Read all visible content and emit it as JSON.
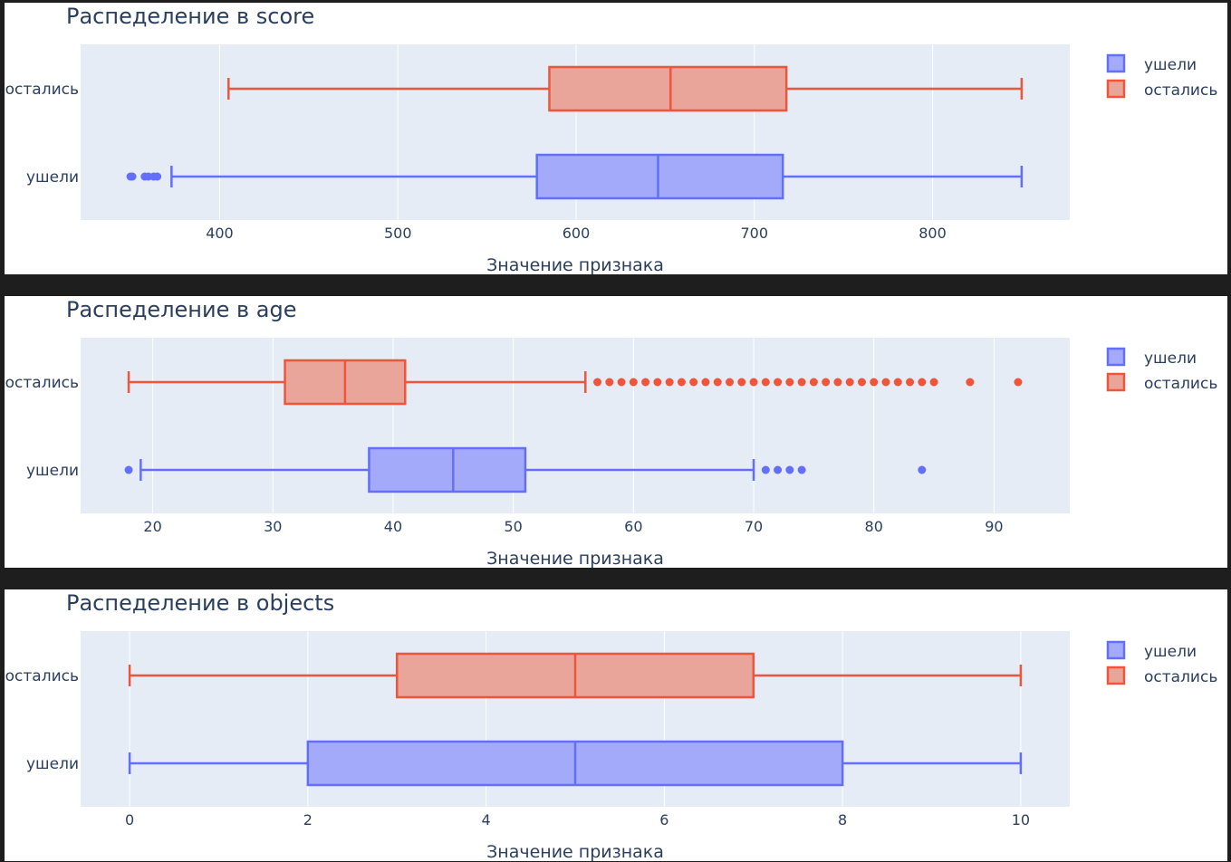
{
  "colors": {
    "left": "#636efa",
    "left_fill": "#a3aaf9",
    "stayed": "#ef553b",
    "stayed_fill": "#eaa59a",
    "plot_bg": "#e5ecf6",
    "grid": "#ffffff",
    "text": "#2a3f5f",
    "panel_bg": "#ffffff",
    "separator": "#1e1e1e"
  },
  "legend": {
    "placement": "top-right",
    "items": [
      "ушели",
      "остались"
    ]
  },
  "chart_data": [
    {
      "type": "box",
      "orientation": "horizontal",
      "title": "Распеделение в score",
      "xlabel": "Значение признака",
      "categories": [
        "остались",
        "ушели"
      ],
      "xlim": [
        322,
        877
      ],
      "xticks": [
        400,
        500,
        600,
        700,
        800
      ],
      "xtick_labels": [
        "400",
        "500",
        "600",
        "700",
        "800"
      ],
      "grid": true,
      "series": [
        {
          "name": "ушели",
          "category": "ушели",
          "color": "#636efa",
          "fill": "#a3aaf9",
          "lower_fence": 373,
          "q1": 578,
          "median": 646,
          "q3": 716,
          "upper_fence": 850,
          "outliers": [
            350,
            351,
            358,
            360,
            363,
            365
          ]
        },
        {
          "name": "остались",
          "category": "остались",
          "color": "#ef553b",
          "fill": "#eaa59a",
          "lower_fence": 405,
          "q1": 585,
          "median": 653,
          "q3": 718,
          "upper_fence": 850,
          "outliers": []
        }
      ]
    },
    {
      "type": "box",
      "orientation": "horizontal",
      "title": "Распеделение в age",
      "xlabel": "Значение признака",
      "categories": [
        "остались",
        "ушели"
      ],
      "xlim": [
        14,
        96.3
      ],
      "xticks": [
        20,
        30,
        40,
        50,
        60,
        70,
        80,
        90
      ],
      "xtick_labels": [
        "20",
        "30",
        "40",
        "50",
        "60",
        "70",
        "80",
        "90"
      ],
      "grid": true,
      "series": [
        {
          "name": "ушели",
          "category": "ушели",
          "color": "#636efa",
          "fill": "#a3aaf9",
          "lower_fence": 19,
          "q1": 38,
          "median": 45,
          "q3": 51,
          "upper_fence": 70,
          "outliers": [
            18,
            71,
            72,
            73,
            74,
            84
          ]
        },
        {
          "name": "остались",
          "category": "остались",
          "color": "#ef553b",
          "fill": "#eaa59a",
          "lower_fence": 18,
          "q1": 31,
          "median": 36,
          "q3": 41,
          "upper_fence": 56,
          "outliers": [
            57,
            58,
            59,
            60,
            61,
            62,
            63,
            64,
            65,
            66,
            67,
            68,
            69,
            70,
            71,
            72,
            73,
            74,
            75,
            76,
            77,
            78,
            79,
            80,
            81,
            82,
            83,
            84,
            85,
            88,
            92
          ]
        }
      ]
    },
    {
      "type": "box",
      "orientation": "horizontal",
      "title": "Распеделение в objects",
      "xlabel": "Значение признака",
      "categories": [
        "остались",
        "ушели"
      ],
      "xlim": [
        -0.55,
        10.55
      ],
      "xticks": [
        0,
        2,
        4,
        6,
        8,
        10
      ],
      "xtick_labels": [
        "0",
        "2",
        "4",
        "6",
        "8",
        "10"
      ],
      "grid": true,
      "series": [
        {
          "name": "ушели",
          "category": "ушели",
          "color": "#636efa",
          "fill": "#a3aaf9",
          "lower_fence": 0,
          "q1": 2,
          "median": 5,
          "q3": 8,
          "upper_fence": 10,
          "outliers": []
        },
        {
          "name": "остались",
          "category": "остались",
          "color": "#ef553b",
          "fill": "#eaa59a",
          "lower_fence": 0,
          "q1": 3,
          "median": 5,
          "q3": 7,
          "upper_fence": 10,
          "outliers": []
        }
      ]
    }
  ]
}
